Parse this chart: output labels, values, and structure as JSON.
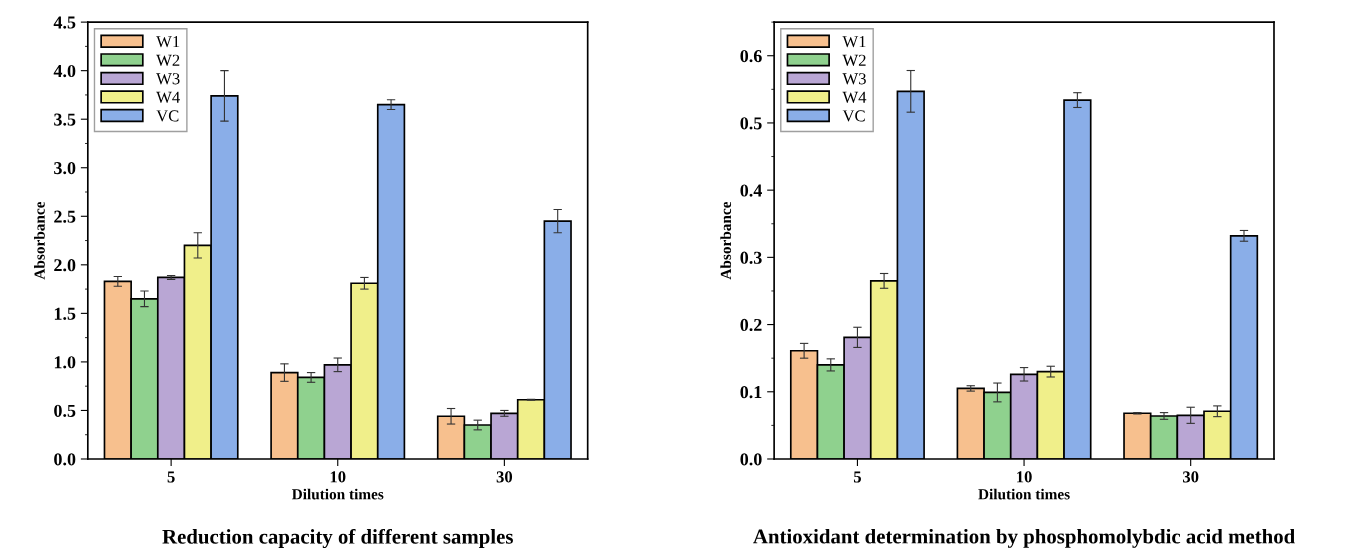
{
  "chart_data": [
    {
      "type": "bar",
      "title": "Reduction capacity of different samples",
      "xlabel": "Dilution times",
      "ylabel": "Absorbance",
      "categories": [
        "5",
        "10",
        "30"
      ],
      "series": [
        {
          "name": "W1",
          "color": "#f7c08e",
          "values": [
            1.83,
            0.89,
            0.44
          ],
          "errors": [
            0.05,
            0.09,
            0.08
          ]
        },
        {
          "name": "W2",
          "color": "#8fd18e",
          "values": [
            1.65,
            0.84,
            0.35
          ],
          "errors": [
            0.08,
            0.05,
            0.05
          ]
        },
        {
          "name": "W3",
          "color": "#b9a6d4",
          "values": [
            1.87,
            0.97,
            0.47
          ],
          "errors": [
            0.02,
            0.07,
            0.03
          ]
        },
        {
          "name": "W4",
          "color": "#f0ef8a",
          "values": [
            2.2,
            1.81,
            0.61
          ],
          "errors": [
            0.13,
            0.06,
            0.005
          ]
        },
        {
          "name": "VC",
          "color": "#8aaee8",
          "values": [
            3.74,
            3.65,
            2.45
          ],
          "errors": [
            0.26,
            0.05,
            0.12
          ]
        }
      ],
      "ylim": [
        0,
        4.5
      ],
      "yticks": [
        {
          "value": 0,
          "label": "0.0"
        },
        {
          "value": 0.5,
          "label": "0.5"
        },
        {
          "value": 1,
          "label": "1.0"
        },
        {
          "value": 1.5,
          "label": "1.5"
        },
        {
          "value": 2,
          "label": "2.0"
        },
        {
          "value": 2.5,
          "label": "2.5"
        },
        {
          "value": 3,
          "label": "3.0"
        },
        {
          "value": 3.5,
          "label": "3.5"
        },
        {
          "value": 4,
          "label": "4.0"
        },
        {
          "value": 4.5,
          "label": "4.5"
        }
      ],
      "grid": false,
      "legend": "top left"
    },
    {
      "type": "bar",
      "title": "Antioxidant determination by phosphomolybdic acid method",
      "xlabel": "Dilution times",
      "ylabel": "Absorbance",
      "categories": [
        "5",
        "10",
        "30"
      ],
      "series": [
        {
          "name": "W1",
          "color": "#f7c08e",
          "values": [
            0.161,
            0.105,
            0.068
          ],
          "errors": [
            0.011,
            0.004,
            0.001
          ]
        },
        {
          "name": "W2",
          "color": "#8fd18e",
          "values": [
            0.14,
            0.099,
            0.064
          ],
          "errors": [
            0.009,
            0.014,
            0.005
          ]
        },
        {
          "name": "W3",
          "color": "#b9a6d4",
          "values": [
            0.181,
            0.126,
            0.065
          ],
          "errors": [
            0.015,
            0.01,
            0.012
          ]
        },
        {
          "name": "W4",
          "color": "#f0ef8a",
          "values": [
            0.265,
            0.13,
            0.071
          ],
          "errors": [
            0.011,
            0.008,
            0.008
          ]
        },
        {
          "name": "VC",
          "color": "#8aaee8",
          "values": [
            0.547,
            0.534,
            0.332
          ],
          "errors": [
            0.031,
            0.011,
            0.008
          ]
        }
      ],
      "ylim": [
        0,
        0.65
      ],
      "yticks": [
        {
          "value": 0,
          "label": "0.0"
        },
        {
          "value": 0.1,
          "label": "0.1"
        },
        {
          "value": 0.2,
          "label": "0.2"
        },
        {
          "value": 0.3,
          "label": "0.3"
        },
        {
          "value": 0.4,
          "label": "0.4"
        },
        {
          "value": 0.5,
          "label": "0.5"
        },
        {
          "value": 0.6,
          "label": "0.6"
        }
      ],
      "grid": false,
      "legend": "top left"
    }
  ]
}
